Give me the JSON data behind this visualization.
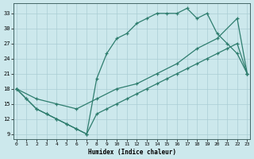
{
  "line1_x": [
    0,
    1,
    2,
    3,
    4,
    5,
    6,
    7,
    8,
    9,
    10,
    11,
    12,
    13,
    14,
    15,
    16,
    17,
    18,
    19,
    20,
    21,
    22,
    23
  ],
  "line1_y": [
    18,
    16,
    14,
    13,
    12,
    11,
    10,
    9,
    20,
    25,
    28,
    29,
    31,
    32,
    33,
    33,
    33,
    34,
    32,
    33,
    29,
    27,
    25,
    21
  ],
  "line2_x": [
    0,
    2,
    4,
    6,
    8,
    10,
    12,
    14,
    16,
    18,
    20,
    22,
    23
  ],
  "line2_y": [
    18,
    16,
    15,
    14,
    16,
    18,
    19,
    21,
    23,
    26,
    28,
    32,
    21
  ],
  "line3_x": [
    0,
    1,
    2,
    3,
    4,
    5,
    6,
    7,
    8,
    9,
    10,
    11,
    12,
    13,
    14,
    15,
    16,
    17,
    18,
    19,
    20,
    21,
    22,
    23
  ],
  "line3_y": [
    18,
    16,
    14,
    13,
    12,
    11,
    10,
    9,
    13,
    14,
    15,
    16,
    17,
    18,
    19,
    20,
    21,
    22,
    23,
    24,
    25,
    26,
    27,
    21
  ],
  "xlabel": "Humidex (Indice chaleur)",
  "xticks": [
    0,
    1,
    2,
    3,
    4,
    5,
    6,
    7,
    8,
    9,
    10,
    11,
    12,
    13,
    14,
    15,
    16,
    17,
    18,
    19,
    20,
    21,
    22,
    23
  ],
  "yticks": [
    9,
    12,
    15,
    18,
    21,
    24,
    27,
    30,
    33
  ],
  "xlim": [
    -0.3,
    23.3
  ],
  "ylim": [
    8,
    35
  ],
  "line_color": "#2e7d6e",
  "bg_color": "#cce8ec",
  "grid_color": "#aacdd4"
}
